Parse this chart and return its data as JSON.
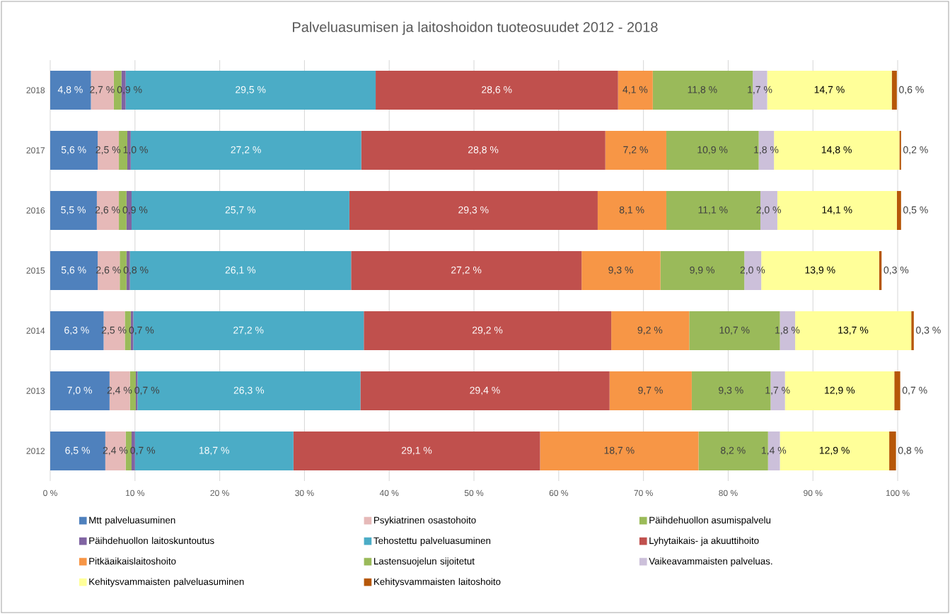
{
  "chart_data": {
    "type": "bar",
    "orientation": "horizontal",
    "stacked": true,
    "title": "Palveluasumisen ja laitoshoidon tuoteosuudet  2012 - 2018",
    "categories": [
      "2018",
      "2017",
      "2016",
      "2015",
      "2014",
      "2013",
      "2012"
    ],
    "series": [
      {
        "name": "Mtt palveluasuminen",
        "color": "#4f81bd",
        "values": [
          4.8,
          5.6,
          5.5,
          5.6,
          6.3,
          7.0,
          6.5
        ],
        "value_labels": [
          "4,8 %",
          "5,6 %",
          "5,5 %",
          "5,6 %",
          "6,3 %",
          "7,0 %",
          "6,5 %"
        ]
      },
      {
        "name": "Psykiatrinen osastohoito",
        "color": "#e6b9b8",
        "values": [
          2.7,
          2.5,
          2.6,
          2.6,
          2.5,
          2.4,
          2.4
        ],
        "value_labels": [
          "2,7 %",
          "2,5 %",
          "2,6 %",
          "2,6 %",
          "2,5 %",
          "2,4 %",
          "2,4 %"
        ]
      },
      {
        "name": "Päihdehuollon asumispalvelu",
        "color": "#9bbb59",
        "values": [
          0.9,
          1.0,
          0.9,
          0.8,
          0.7,
          0.7,
          0.7
        ],
        "value_labels": [
          "0,9 %",
          "1,0 %",
          "0,9 %",
          "0,8 %",
          "0,7 %",
          "0,7 %",
          "0,7 %"
        ]
      },
      {
        "name": "Päihdehuollon laitoskuntoutus",
        "color": "#8064a2",
        "values": [
          0.5,
          0.4,
          0.6,
          0.4,
          0.3,
          0.2,
          0.4
        ]
      },
      {
        "name": "Tehostettu palveluasuminen",
        "color": "#4bacc6",
        "values": [
          29.5,
          27.2,
          25.7,
          26.1,
          27.2,
          26.3,
          18.7
        ],
        "value_labels": [
          "29,5 %",
          "27,2 %",
          "25,7 %",
          "26,1 %",
          "27,2 %",
          "26,3 %",
          "18,7 %"
        ]
      },
      {
        "name": "Lyhytaikais- ja akuuttihoito",
        "color": "#c0504d",
        "values": [
          28.6,
          28.8,
          29.3,
          27.2,
          29.2,
          29.4,
          29.1
        ],
        "value_labels": [
          "28,6 %",
          "28,8 %",
          "29,3 %",
          "27,2 %",
          "29,2 %",
          "29,4 %",
          "29,1 %"
        ]
      },
      {
        "name": "Pitkäaikaislaitoshoito",
        "color": "#f79646",
        "values": [
          4.1,
          7.2,
          8.1,
          9.3,
          9.2,
          9.7,
          18.7
        ],
        "value_labels": [
          "4,1 %",
          "7,2 %",
          "8,1 %",
          "9,3 %",
          "9,2 %",
          "9,7 %",
          "18,7 %"
        ]
      },
      {
        "name": "Lastensuojelun sijoitetut",
        "color": "#9aba5a",
        "values": [
          11.8,
          10.9,
          11.1,
          9.9,
          10.7,
          9.3,
          8.2
        ],
        "value_labels": [
          "11,8 %",
          "10,9 %",
          "11,1 %",
          "9,9 %",
          "10,7 %",
          "9,3 %",
          "8,2 %"
        ]
      },
      {
        "name": "Vaikeavammaisten palveluas.",
        "color": "#ccc0da",
        "values": [
          1.7,
          1.8,
          2.0,
          2.0,
          1.8,
          1.7,
          1.4
        ],
        "value_labels": [
          "1,7 %",
          "1,8 %",
          "2,0 %",
          "2,0 %",
          "1,8 %",
          "1,7 %",
          "1,4 %"
        ]
      },
      {
        "name": "Kehitysvammaisten palveluasuminen",
        "color": "#ffff99",
        "values": [
          14.7,
          14.8,
          14.1,
          13.9,
          13.7,
          12.9,
          12.9
        ],
        "value_labels": [
          "14,7 %",
          "14,8 %",
          "14,1 %",
          "13,9 %",
          "13,7 %",
          "12,9 %",
          "12,9 %"
        ]
      },
      {
        "name": "Kehitysvammaisten laitoshoito",
        "color": "#b65708",
        "values": [
          0.6,
          0.2,
          0.5,
          0.3,
          0.3,
          0.7,
          0.8
        ],
        "value_labels": [
          "0,6 %",
          "0,2 %",
          "0,5 %",
          "0,3 %",
          "0,3 %",
          "0,7 %",
          "0,8 %"
        ]
      }
    ],
    "xlim": [
      0,
      102
    ],
    "xticks": [
      {
        "value": 0,
        "label": "0 %"
      },
      {
        "value": 10,
        "label": "10 %"
      },
      {
        "value": 20,
        "label": "20 %"
      },
      {
        "value": 30,
        "label": "30 %"
      },
      {
        "value": 40,
        "label": "40 %"
      },
      {
        "value": 50,
        "label": "50 %"
      },
      {
        "value": 60,
        "label": "60 %"
      },
      {
        "value": 70,
        "label": "70 %"
      },
      {
        "value": 80,
        "label": "80 %"
      },
      {
        "value": 90,
        "label": "90 %"
      },
      {
        "value": 100,
        "label": "100 %"
      }
    ],
    "grid": "x",
    "legend": "bottom"
  }
}
